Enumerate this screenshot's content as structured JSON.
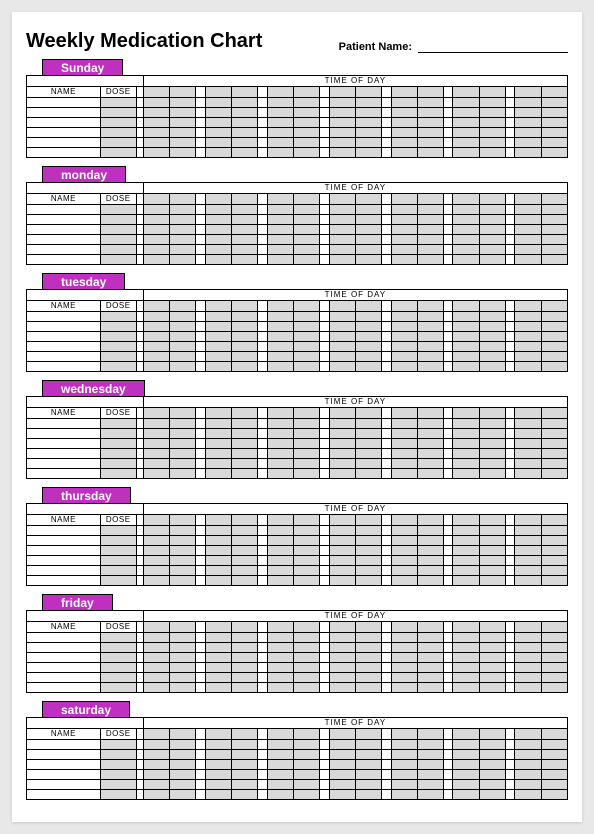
{
  "title": "Weekly Medication Chart",
  "patient_name_label": "Patient Name:",
  "columns": {
    "name_label": "NAME",
    "dose_label": "DOSE",
    "time_of_day_label": "TIME  OF DAY"
  },
  "styling": {
    "page_background": "#e8e8e8",
    "sheet_background": "#ffffff",
    "border_color": "#000000",
    "gray_cell_color": "#d9d9d9",
    "day_tab_background": "#c030c0",
    "day_tab_text_color": "#ffffff",
    "title_fontsize": 20,
    "label_fontsize": 8,
    "patient_label_fontsize": 11,
    "data_rows_per_day": 6,
    "time_slot_count": 7,
    "column_widths": {
      "name": 62,
      "dose": 30,
      "wide_gap": 6,
      "gray_slot": 22,
      "narrow_gap": 8
    }
  },
  "days": [
    {
      "label": "Sunday"
    },
    {
      "label": "monday"
    },
    {
      "label": "tuesday"
    },
    {
      "label": "wednesday"
    },
    {
      "label": "thursday"
    },
    {
      "label": "friday"
    },
    {
      "label": "saturday"
    }
  ]
}
